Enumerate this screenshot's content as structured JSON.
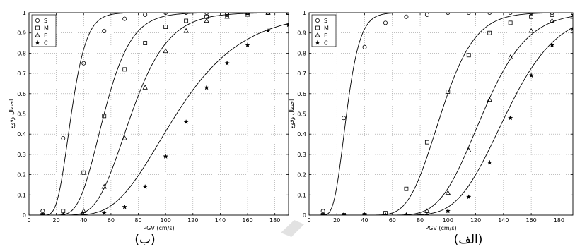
{
  "chart_data": [
    {
      "type": "line",
      "caption": "(ب)",
      "xlabel": "PGV (cm/s)",
      "ylabel": "احتمال وقوع",
      "xlim": [
        0,
        190
      ],
      "ylim": [
        0,
        1
      ],
      "xticks": [
        0,
        20,
        40,
        60,
        80,
        100,
        120,
        140,
        160,
        180
      ],
      "yticks": [
        0,
        0.1,
        0.2,
        0.3,
        0.4,
        0.5,
        0.6,
        0.7,
        0.8,
        0.9,
        1
      ],
      "grid": true,
      "legend_position": "top-left",
      "series": [
        {
          "name": "S",
          "marker": "circle",
          "median": 31,
          "beta": 0.28,
          "x": [
            10,
            25,
            40,
            55,
            70,
            85,
            100,
            115,
            130,
            145,
            160,
            175,
            190
          ],
          "y": [
            0.02,
            0.38,
            0.75,
            0.91,
            0.97,
            0.99,
            1.0,
            1.0,
            1.0,
            1.0,
            1.0,
            1.0,
            1.0
          ]
        },
        {
          "name": "M",
          "marker": "square",
          "median": 55,
          "beta": 0.28,
          "x": [
            10,
            25,
            40,
            55,
            70,
            85,
            100,
            115,
            130,
            145,
            160,
            175,
            190
          ],
          "y": [
            0.0,
            0.02,
            0.21,
            0.49,
            0.72,
            0.85,
            0.93,
            0.96,
            0.98,
            0.99,
            1.0,
            1.0,
            1.0
          ]
        },
        {
          "name": "E",
          "marker": "triangle",
          "median": 75,
          "beta": 0.28,
          "x": [
            10,
            25,
            40,
            55,
            70,
            85,
            100,
            115,
            130,
            145,
            160,
            175,
            190
          ],
          "y": [
            0.0,
            0.0,
            0.02,
            0.14,
            0.38,
            0.63,
            0.81,
            0.91,
            0.96,
            0.98,
            0.99,
            1.0,
            1.0
          ]
        },
        {
          "name": "C",
          "marker": "star",
          "median": 108,
          "beta": 0.35,
          "x": [
            10,
            25,
            40,
            55,
            70,
            85,
            100,
            115,
            130,
            145,
            160,
            175,
            190
          ],
          "y": [
            0.0,
            0.0,
            0.0,
            0.01,
            0.04,
            0.14,
            0.29,
            0.46,
            0.63,
            0.75,
            0.84,
            0.91,
            0.94
          ]
        }
      ]
    },
    {
      "type": "line",
      "caption": "(الف)",
      "xlabel": "PGV (cm/s)",
      "ylabel": "احتمال وقوع",
      "xlim": [
        0,
        190
      ],
      "ylim": [
        0,
        1
      ],
      "xticks": [
        0,
        20,
        40,
        60,
        80,
        100,
        120,
        140,
        160,
        180
      ],
      "yticks": [
        0,
        0.1,
        0.2,
        0.3,
        0.4,
        0.5,
        0.6,
        0.7,
        0.8,
        0.9,
        1
      ],
      "grid": true,
      "legend_position": "top-left",
      "series": [
        {
          "name": "S",
          "marker": "circle",
          "median": 27,
          "beta": 0.28,
          "x": [
            10,
            25,
            40,
            55,
            70,
            85,
            100,
            115,
            130,
            145,
            160,
            175,
            190
          ],
          "y": [
            0.02,
            0.48,
            0.83,
            0.95,
            0.98,
            0.99,
            1.0,
            1.0,
            1.0,
            1.0,
            1.0,
            1.0,
            1.0
          ]
        },
        {
          "name": "M",
          "marker": "square",
          "median": 95,
          "beta": 0.2,
          "x": [
            10,
            25,
            40,
            55,
            70,
            85,
            100,
            115,
            130,
            145,
            160,
            175,
            190
          ],
          "y": [
            0.0,
            0.0,
            0.0,
            0.01,
            0.13,
            0.36,
            0.61,
            0.79,
            0.9,
            0.95,
            0.98,
            0.99,
            1.0
          ]
        },
        {
          "name": "E",
          "marker": "triangle",
          "median": 125,
          "beta": 0.2,
          "x": [
            10,
            25,
            40,
            55,
            70,
            85,
            100,
            115,
            130,
            145,
            160,
            175,
            190
          ],
          "y": [
            0.0,
            0.0,
            0.0,
            0.0,
            0.0,
            0.02,
            0.11,
            0.32,
            0.57,
            0.78,
            0.91,
            0.96,
            0.98
          ]
        },
        {
          "name": "C",
          "marker": "star",
          "median": 142,
          "beta": 0.2,
          "x": [
            10,
            25,
            40,
            55,
            70,
            85,
            100,
            115,
            130,
            145,
            160,
            175,
            190
          ],
          "y": [
            0.0,
            0.0,
            0.0,
            0.0,
            0.0,
            0.0,
            0.02,
            0.09,
            0.26,
            0.48,
            0.69,
            0.84,
            0.92
          ]
        }
      ]
    }
  ]
}
